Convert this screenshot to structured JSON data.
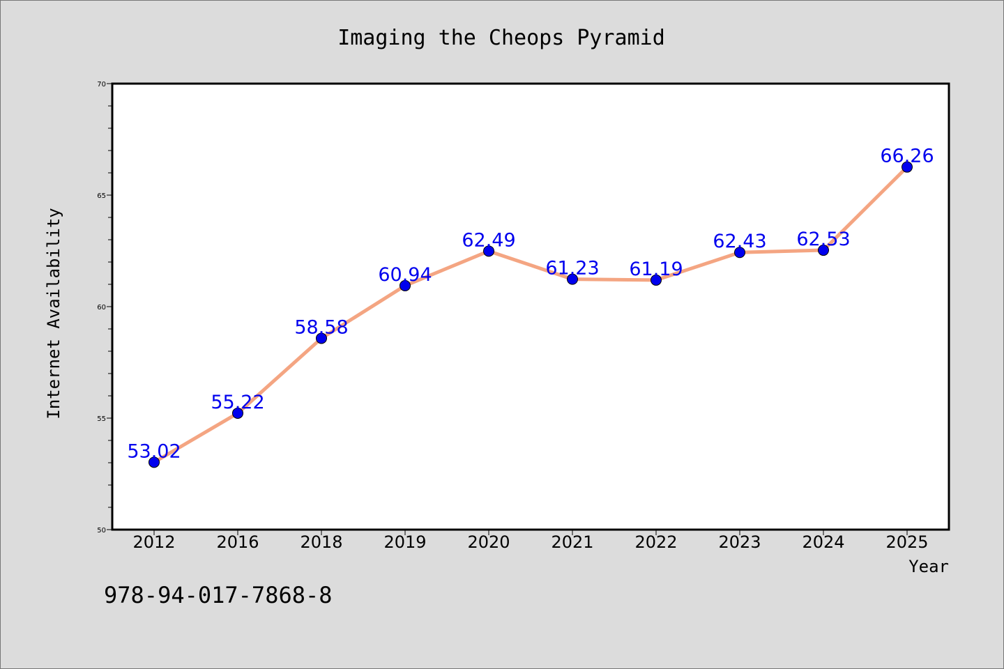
{
  "chart_data": {
    "type": "line",
    "title": "Imaging the Cheops Pyramid",
    "xlabel": "Year",
    "ylabel": "Internet Availability",
    "categories": [
      "2012",
      "2016",
      "2018",
      "2019",
      "2020",
      "2021",
      "2022",
      "2023",
      "2024",
      "2025"
    ],
    "series": [
      {
        "values": [
          53.02,
          55.22,
          58.58,
          60.94,
          62.49,
          61.23,
          61.19,
          62.43,
          62.53,
          66.26
        ]
      }
    ],
    "data_labels": [
      "53.02",
      "55.22",
      "58.58",
      "60.94",
      "62.49",
      "61.23",
      "61.19",
      "62.43",
      "62.53",
      "66.26"
    ],
    "ylim": [
      50,
      70
    ],
    "yticks": [
      "50",
      "55",
      "60",
      "65",
      "70"
    ],
    "grid": false,
    "line_color": "#f4a582",
    "marker_color": "#0000ee",
    "label_color": "#0000ee",
    "annotation": "978-94-017-7868-8"
  }
}
